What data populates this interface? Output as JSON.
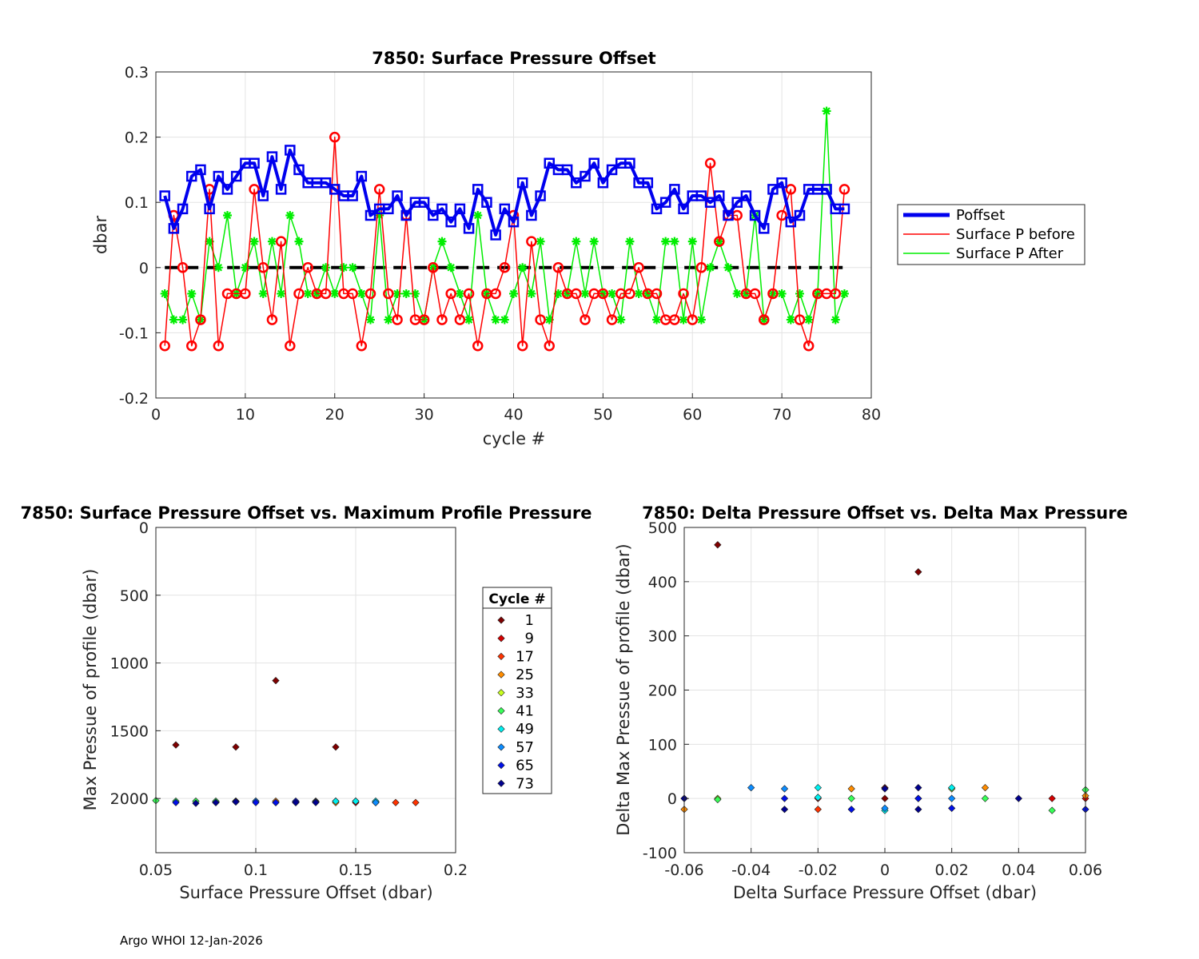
{
  "footer": "Argo WHOI 12-Jan-2026",
  "colors": {
    "poffset": "#0000ee",
    "before": "#ff0000",
    "after": "#00ee00",
    "zero_line": "#000000",
    "cycle_palette": [
      "#7f0000",
      "#d40000",
      "#ff3300",
      "#ff8c00",
      "#c8ff1e",
      "#38ff58",
      "#00f0f0",
      "#0c8cff",
      "#0010e8",
      "#00008f"
    ]
  },
  "chart_data": [
    {
      "id": "top",
      "type": "line",
      "title": "7850: Surface Pressure Offset",
      "xlabel": "cycle #",
      "ylabel": "dbar",
      "xlim": [
        0,
        80
      ],
      "ylim": [
        -0.2,
        0.3
      ],
      "xticks": [
        0,
        10,
        20,
        30,
        40,
        50,
        60,
        70,
        80
      ],
      "yticks": [
        -0.2,
        -0.1,
        0,
        0.1,
        0.2,
        0.3
      ],
      "grid": true,
      "legend_position": "outside-right",
      "x": [
        1,
        2,
        3,
        4,
        5,
        6,
        7,
        8,
        9,
        10,
        11,
        12,
        13,
        14,
        15,
        16,
        17,
        18,
        19,
        20,
        21,
        22,
        23,
        24,
        25,
        26,
        27,
        28,
        29,
        30,
        31,
        32,
        33,
        34,
        35,
        36,
        37,
        38,
        39,
        40,
        41,
        42,
        43,
        44,
        45,
        46,
        47,
        48,
        49,
        50,
        51,
        52,
        53,
        54,
        55,
        56,
        57,
        58,
        59,
        60,
        61,
        62,
        63,
        64,
        65,
        66,
        67,
        68,
        69,
        70,
        71,
        72,
        73,
        74,
        75,
        76,
        77
      ],
      "series": [
        {
          "name": "Poffset",
          "style": "thick-line-square",
          "values": [
            0.11,
            0.06,
            0.09,
            0.14,
            0.15,
            0.09,
            0.14,
            0.12,
            0.14,
            0.16,
            0.16,
            0.11,
            0.17,
            0.12,
            0.18,
            0.15,
            0.13,
            0.13,
            0.13,
            0.12,
            0.11,
            0.11,
            0.14,
            0.08,
            0.09,
            0.09,
            0.11,
            0.08,
            0.1,
            0.1,
            0.08,
            0.09,
            0.07,
            0.09,
            0.06,
            0.12,
            0.1,
            0.05,
            0.09,
            0.07,
            0.13,
            0.08,
            0.11,
            0.16,
            0.15,
            0.15,
            0.13,
            0.14,
            0.16,
            0.13,
            0.15,
            0.16,
            0.16,
            0.13,
            0.13,
            0.09,
            0.1,
            0.12,
            0.09,
            0.11,
            0.11,
            0.1,
            0.11,
            0.08,
            0.1,
            0.11,
            0.08,
            0.06,
            0.12,
            0.13,
            0.07,
            0.08,
            0.12,
            0.12,
            0.12,
            0.09,
            0.09
          ]
        },
        {
          "name": "Surface P before",
          "style": "line-circle",
          "values": [
            -0.12,
            0.08,
            0.0,
            -0.12,
            -0.08,
            0.12,
            -0.12,
            -0.04,
            -0.04,
            -0.04,
            0.12,
            0.0,
            -0.08,
            0.04,
            -0.12,
            -0.04,
            0.0,
            -0.04,
            -0.04,
            0.2,
            -0.04,
            -0.04,
            -0.12,
            -0.04,
            0.12,
            -0.04,
            -0.08,
            0.08,
            -0.08,
            -0.08,
            0.0,
            -0.08,
            -0.04,
            -0.08,
            -0.04,
            -0.12,
            -0.04,
            -0.04,
            0.0,
            0.08,
            -0.12,
            0.04,
            -0.08,
            -0.12,
            0.0,
            -0.04,
            -0.04,
            -0.08,
            -0.04,
            -0.04,
            -0.08,
            -0.04,
            -0.04,
            0.0,
            -0.04,
            -0.04,
            -0.08,
            -0.08,
            -0.04,
            -0.08,
            0.0,
            0.16,
            0.04,
            0.08,
            0.08,
            -0.04,
            -0.04,
            -0.08,
            -0.04,
            0.08,
            0.12,
            -0.08,
            -0.12,
            -0.04,
            -0.04,
            -0.04,
            0.12
          ]
        },
        {
          "name": "Surface P After",
          "style": "line-star",
          "values": [
            -0.04,
            -0.08,
            -0.08,
            -0.04,
            -0.08,
            0.04,
            0.0,
            0.08,
            -0.04,
            0.0,
            0.04,
            -0.04,
            0.04,
            -0.04,
            0.08,
            0.04,
            -0.04,
            -0.04,
            0.0,
            -0.04,
            0.0,
            0.0,
            -0.04,
            -0.08,
            0.08,
            -0.08,
            -0.04,
            -0.04,
            -0.04,
            -0.08,
            0.0,
            0.04,
            0.0,
            -0.04,
            -0.08,
            0.08,
            -0.04,
            -0.08,
            -0.08,
            -0.04,
            0.0,
            -0.04,
            0.04,
            -0.08,
            -0.04,
            -0.04,
            0.04,
            -0.04,
            0.04,
            -0.04,
            -0.04,
            -0.08,
            0.04,
            -0.04,
            -0.04,
            -0.08,
            0.04,
            0.04,
            -0.08,
            0.04,
            -0.08,
            0.0,
            0.04,
            0.0,
            -0.04,
            -0.04,
            0.08,
            -0.08,
            -0.04,
            -0.04,
            -0.08,
            -0.04,
            -0.08,
            -0.04,
            0.24,
            -0.08,
            -0.04
          ]
        }
      ]
    },
    {
      "id": "bottom-left",
      "type": "scatter",
      "title": "7850: Surface Pressure Offset vs. Maximum Profile Pressure",
      "xlabel": "Surface Pressure Offset (dbar)",
      "ylabel": "Max Pressue of profile (dbar)",
      "xlim": [
        0.05,
        0.2
      ],
      "ylim": [
        0,
        2400
      ],
      "y_reversed": true,
      "xticks": [
        0.05,
        0.1,
        0.15,
        0.2
      ],
      "xtick_labels": [
        "0.05",
        "0.1",
        "0.15",
        "0.2"
      ],
      "yticks": [
        0,
        500,
        1000,
        1500,
        2000
      ],
      "grid": true,
      "legend_title": "Cycle #",
      "legend_entries": [
        "1",
        "9",
        "17",
        "25",
        "33",
        "41",
        "49",
        "57",
        "65",
        "73"
      ],
      "points": [
        [
          0.06,
          1605,
          0
        ],
        [
          0.09,
          1620,
          0
        ],
        [
          0.11,
          1130,
          0
        ],
        [
          0.14,
          1620,
          0
        ],
        [
          0.11,
          2030,
          0
        ],
        [
          0.09,
          2020,
          0
        ],
        [
          0.12,
          2030,
          0
        ],
        [
          0.14,
          2020,
          0
        ],
        [
          0.16,
          2030,
          1
        ],
        [
          0.16,
          2025,
          1
        ],
        [
          0.15,
          2030,
          1
        ],
        [
          0.13,
          2025,
          1
        ],
        [
          0.13,
          2020,
          2
        ],
        [
          0.18,
          2030,
          2
        ],
        [
          0.17,
          2030,
          2
        ],
        [
          0.15,
          2020,
          2
        ],
        [
          0.14,
          2030,
          3
        ],
        [
          0.11,
          2020,
          3
        ],
        [
          0.12,
          2025,
          3
        ],
        [
          0.09,
          2020,
          4
        ],
        [
          0.1,
          2020,
          4
        ],
        [
          0.08,
          2025,
          4
        ],
        [
          0.07,
          2020,
          5
        ],
        [
          0.08,
          2020,
          5
        ],
        [
          0.05,
          2015,
          5
        ],
        [
          0.06,
          2020,
          5
        ],
        [
          0.13,
          2025,
          6
        ],
        [
          0.14,
          2020,
          6
        ],
        [
          0.16,
          2020,
          6
        ],
        [
          0.15,
          2020,
          6
        ],
        [
          0.16,
          2030,
          7
        ],
        [
          0.12,
          2025,
          7
        ],
        [
          0.1,
          2020,
          7
        ],
        [
          0.11,
          2030,
          8
        ],
        [
          0.09,
          2025,
          8
        ],
        [
          0.06,
          2030,
          8
        ],
        [
          0.08,
          2030,
          8
        ],
        [
          0.12,
          2020,
          8
        ],
        [
          0.1,
          2030,
          8
        ],
        [
          0.12,
          2030,
          9
        ],
        [
          0.09,
          2025,
          9
        ],
        [
          0.07,
          2035,
          9
        ],
        [
          0.08,
          2030,
          9
        ],
        [
          0.13,
          2030,
          9
        ]
      ]
    },
    {
      "id": "bottom-right",
      "type": "scatter",
      "title": "7850: Delta Pressure Offset vs. Delta Max Pressure",
      "xlabel": "Delta Surface Pressure Offset (dbar)",
      "ylabel": "Delta Max Pressue of profile (dbar)",
      "xlim": [
        -0.06,
        0.06
      ],
      "ylim": [
        -100,
        500
      ],
      "xticks": [
        -0.06,
        -0.04,
        -0.02,
        0,
        0.02,
        0.04,
        0.06
      ],
      "xtick_labels": [
        "-0.06",
        "-0.04",
        "-0.02",
        "0",
        "0.02",
        "0.04",
        "0.06"
      ],
      "yticks": [
        -100,
        0,
        100,
        200,
        300,
        400,
        500
      ],
      "grid": true,
      "points": [
        [
          -0.05,
          468,
          0
        ],
        [
          0.01,
          418,
          0
        ],
        [
          0,
          20,
          0
        ],
        [
          0,
          0,
          0
        ],
        [
          -0.06,
          0,
          0
        ],
        [
          0.05,
          0,
          1
        ],
        [
          -0.02,
          0,
          1
        ],
        [
          0.06,
          0,
          1
        ],
        [
          -0.02,
          -20,
          2
        ],
        [
          0.01,
          0,
          2
        ],
        [
          -0.06,
          -20,
          3
        ],
        [
          -0.01,
          18,
          3
        ],
        [
          0.03,
          20,
          3
        ],
        [
          0.06,
          5,
          3
        ],
        [
          -0.05,
          0,
          4
        ],
        [
          0.02,
          18,
          4
        ],
        [
          -0.05,
          -2,
          5
        ],
        [
          0.03,
          0,
          5
        ],
        [
          0.06,
          16,
          5
        ],
        [
          0.05,
          -22,
          5
        ],
        [
          -0.01,
          0,
          5
        ],
        [
          -0.02,
          20,
          6
        ],
        [
          0.02,
          20,
          6
        ],
        [
          0,
          -22,
          6
        ],
        [
          -0.02,
          2,
          6
        ],
        [
          -0.04,
          20,
          7
        ],
        [
          -0.03,
          18,
          7
        ],
        [
          0.02,
          0,
          7
        ],
        [
          0,
          -18,
          7
        ],
        [
          -0.03,
          0,
          8
        ],
        [
          0.01,
          0,
          8
        ],
        [
          -0.01,
          -20,
          8
        ],
        [
          0.02,
          -18,
          8
        ],
        [
          0.06,
          -20,
          8
        ],
        [
          -0.06,
          0,
          9
        ],
        [
          -0.03,
          -20,
          9
        ],
        [
          0.01,
          -20,
          9
        ],
        [
          0.04,
          0,
          9
        ],
        [
          0,
          18,
          9
        ],
        [
          0.01,
          20,
          9
        ]
      ]
    }
  ]
}
